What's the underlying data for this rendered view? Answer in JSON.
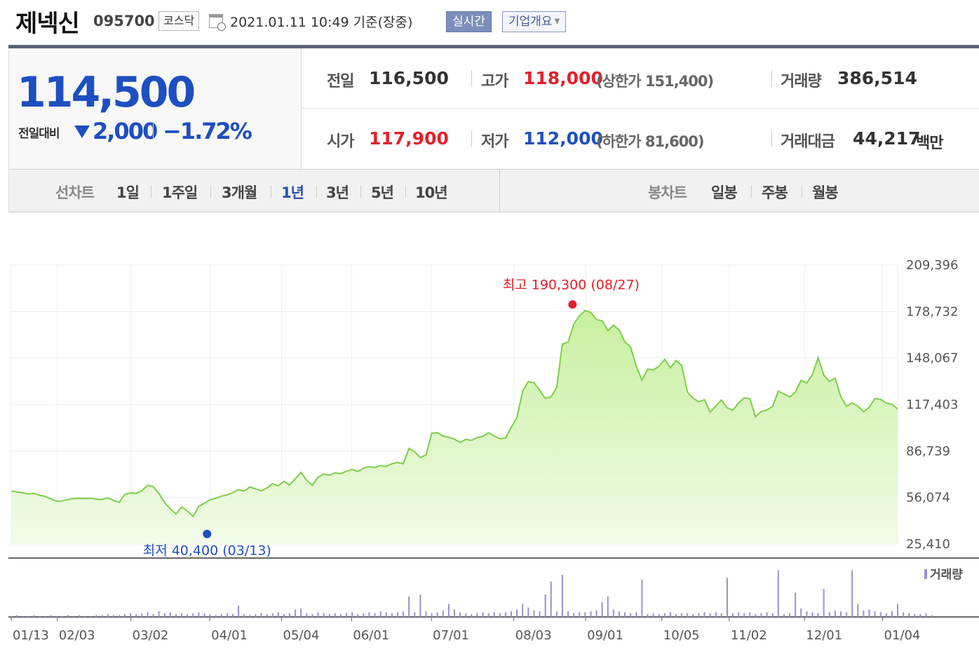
{
  "header": {
    "company_name": "제넥신",
    "stock_code": "095700",
    "market": "코스닥",
    "datetime": "2021.01.11 10:49  기준(장중)",
    "realtime_button": "실시간",
    "company_info_button": "기업개요",
    "icons": [
      "calendar-icon",
      "chevron-down-icon"
    ]
  },
  "price": {
    "current": "114,500",
    "change_label": "전일대비",
    "change_amount": "2,000",
    "change_percent": "−1.72%",
    "direction": "down",
    "prev_close_label": "전일",
    "prev_close": "116,500",
    "open_label": "시가",
    "open": "117,900",
    "high_label": "고가",
    "high": "118,000",
    "high_limit": "(상한가 151,400)",
    "low_label": "저가",
    "low": "112,000",
    "low_limit": "(하한가 81,600)",
    "volume_label": "거래량",
    "volume": "386,514",
    "amount_label": "거래대금",
    "amount": "44,217",
    "amount_unit": "백만",
    "colors": {
      "up": "#e4202b",
      "down": "#1d4fc1"
    }
  },
  "periods": {
    "line_title": "선차트",
    "line_items": [
      "1일",
      "1주일",
      "3개월",
      "1년",
      "3년",
      "5년",
      "10년"
    ],
    "active": "1년",
    "candle_title": "봉차트",
    "candle_items": [
      "일봉",
      "주봉",
      "월봉"
    ]
  },
  "chart_data": {
    "type": "area",
    "y_ticks": [
      "209,396",
      "178,732",
      "148,067",
      "117,403",
      "86,739",
      "56,074",
      "25,410"
    ],
    "ylim": [
      25410,
      209396
    ],
    "x_ticks": [
      "01/13",
      "02/03",
      "03/02",
      "04/01",
      "05/04",
      "06/01",
      "07/01",
      "08/03",
      "09/01",
      "10/05",
      "11/02",
      "12/01",
      "01/04"
    ],
    "annotation_high": "최고 190,300 (08/27)",
    "annotation_low": "최저 40,400 (03/13)",
    "volume_legend": "거래량",
    "grid": true,
    "colors": {
      "line": "#7dcf4a",
      "fill_top": "#c7ef9f",
      "fill_bottom": "#f2fbe8",
      "volume": "#9b8fd0",
      "high": "#e4202b",
      "low": "#1d4fc1"
    },
    "series": [
      {
        "values": [
          60400,
          59800,
          59200,
          58400,
          58800,
          57600,
          56800,
          55200,
          53600,
          53800,
          54800,
          55400,
          55600,
          55400,
          55600,
          55000,
          54800,
          55800,
          54200,
          52800,
          58200,
          59200,
          58800,
          60600,
          64200,
          63200,
          58800,
          52600,
          48600,
          45200,
          49800,
          47200,
          43600,
          50200,
          52400,
          54600,
          55600,
          57000,
          57800,
          59400,
          61200,
          60400,
          63000,
          61800,
          60600,
          62400,
          65200,
          63800,
          66800,
          64400,
          68400,
          72600,
          67400,
          64200,
          69400,
          71600,
          70800,
          72400,
          71800,
          73400,
          74600,
          73200,
          75400,
          76400,
          75800,
          77200,
          76600,
          78400,
          79200,
          78400,
          88400,
          86200,
          82400,
          84200,
          98400,
          98800,
          96600,
          95800,
          94600,
          92400,
          94400,
          93800,
          95600,
          96400,
          98800,
          96600,
          94800,
          95400,
          102400,
          108800,
          126200,
          132600,
          131800,
          126800,
          121400,
          122400,
          128600,
          157200,
          158600,
          170400,
          175800,
          179400,
          178200,
          173400,
          172600,
          166200,
          169800,
          166400,
          158600,
          155400,
          142600,
          133400,
          140800,
          140200,
          142600,
          147200,
          141600,
          146400,
          143200,
          125600,
          121600,
          119200,
          120600,
          112400,
          116400,
          120400,
          115200,
          113600,
          118400,
          121800,
          121200,
          109400,
          112800,
          113800,
          116200,
          126200,
          124400,
          122400,
          125600,
          133400,
          131600,
          137200,
          148200,
          136800,
          132600,
          134800,
          122600,
          116200,
          118400,
          116400,
          112600,
          115600,
          121400,
          120800,
          118400,
          117600,
          114500
        ]
      }
    ],
    "volume_values": [
      1,
      2,
      1,
      1,
      2,
      1,
      1,
      2,
      1,
      1,
      2,
      1,
      2,
      1,
      1,
      2,
      2,
      3,
      2,
      2,
      3,
      4,
      3,
      4,
      5,
      3,
      6,
      4,
      5,
      3,
      4,
      3,
      4,
      5,
      4,
      3,
      2,
      3,
      4,
      3,
      12,
      3,
      2,
      3,
      4,
      3,
      4,
      5,
      3,
      4,
      8,
      9,
      4,
      3,
      5,
      4,
      3,
      4,
      3,
      4,
      5,
      3,
      4,
      5,
      4,
      6,
      5,
      4,
      5,
      6,
      22,
      5,
      24,
      6,
      4,
      5,
      7,
      14,
      8,
      5,
      4,
      3,
      4,
      5,
      4,
      5,
      4,
      5,
      6,
      8,
      14,
      10,
      7,
      6,
      24,
      8,
      6,
      5,
      6,
      4,
      5,
      5,
      6,
      7,
      16,
      22,
      8,
      6,
      5,
      4,
      5,
      4,
      3,
      4,
      3,
      4,
      5,
      3,
      4,
      4,
      3,
      4,
      5,
      4,
      5,
      4,
      3,
      4,
      5,
      4,
      5,
      3,
      4,
      5,
      4,
      4,
      3,
      4,
      5,
      9,
      6,
      5,
      4,
      8,
      5,
      7,
      6,
      5,
      8,
      14,
      7,
      8,
      6,
      5,
      4,
      6,
      14,
      5,
      4,
      3,
      3,
      4,
      2
    ],
    "volume_spikes": [
      [
        95,
        38
      ],
      [
        97,
        45
      ],
      [
        111,
        40
      ],
      [
        126,
        42
      ],
      [
        135,
        50
      ],
      [
        138,
        26
      ],
      [
        143,
        30
      ],
      [
        148,
        50
      ]
    ]
  }
}
